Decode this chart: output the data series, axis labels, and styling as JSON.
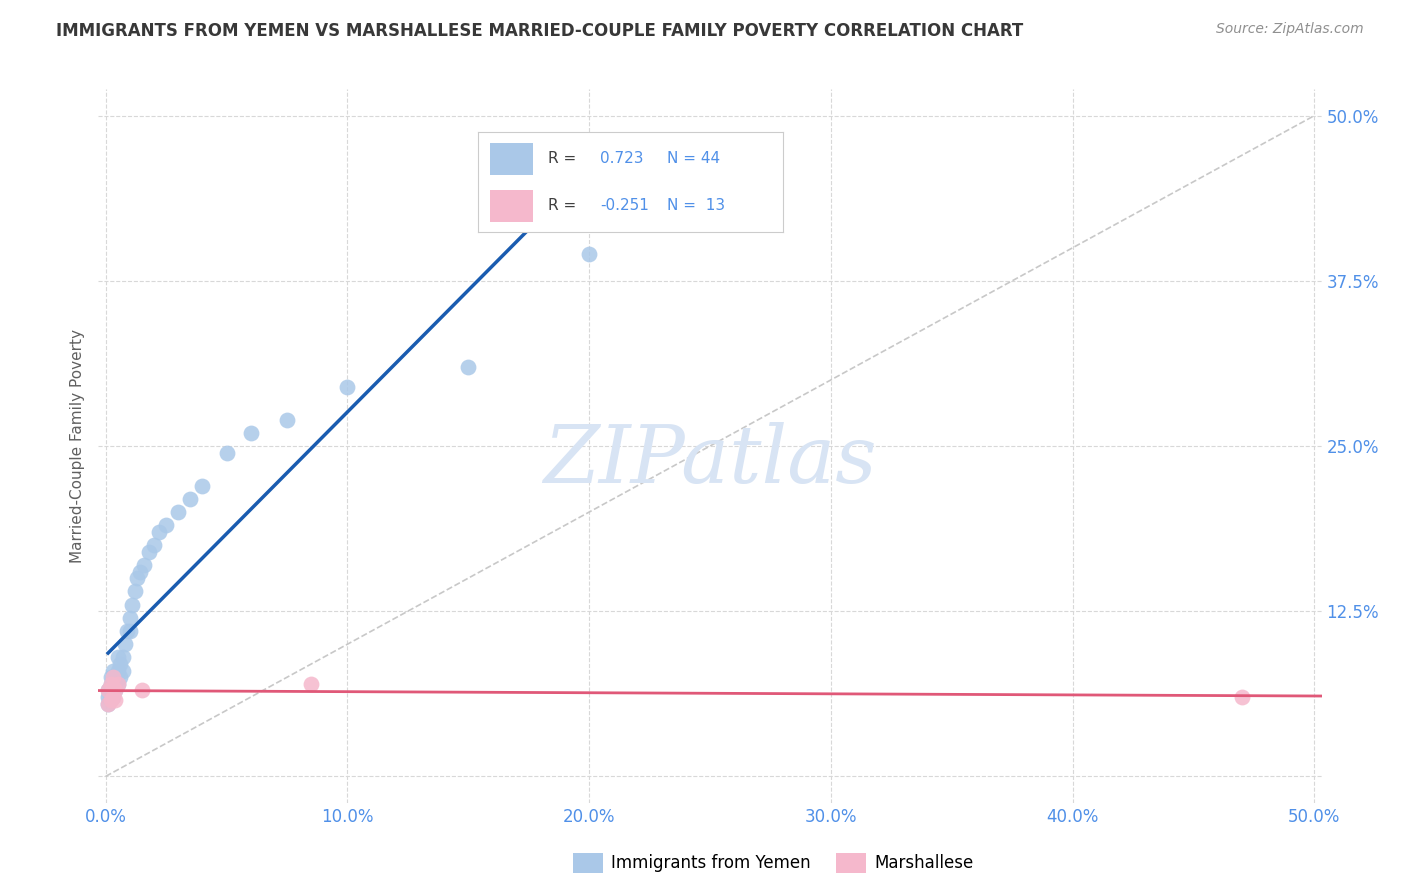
{
  "title": "IMMIGRANTS FROM YEMEN VS MARSHALLESE MARRIED-COUPLE FAMILY POVERTY CORRELATION CHART",
  "source": "Source: ZipAtlas.com",
  "ylabel": "Married-Couple Family Poverty",
  "xlim": [
    -0.003,
    0.503
  ],
  "ylim": [
    -0.02,
    0.52
  ],
  "xticks": [
    0.0,
    0.1,
    0.2,
    0.3,
    0.4,
    0.5
  ],
  "xticklabels": [
    "0.0%",
    "10.0%",
    "20.0%",
    "30.0%",
    "40.0%",
    "50.0%"
  ],
  "ytick_positions": [
    0.0,
    0.125,
    0.25,
    0.375,
    0.5
  ],
  "yticklabels_right": [
    "",
    "12.5%",
    "25.0%",
    "37.5%",
    "50.0%"
  ],
  "watermark": "ZIPatlas",
  "blue_scatter_x": [
    0.001,
    0.001,
    0.001,
    0.002,
    0.002,
    0.002,
    0.002,
    0.003,
    0.003,
    0.003,
    0.003,
    0.003,
    0.004,
    0.004,
    0.004,
    0.005,
    0.005,
    0.005,
    0.006,
    0.006,
    0.007,
    0.007,
    0.008,
    0.009,
    0.01,
    0.01,
    0.011,
    0.012,
    0.013,
    0.014,
    0.016,
    0.018,
    0.02,
    0.022,
    0.025,
    0.03,
    0.035,
    0.04,
    0.05,
    0.06,
    0.075,
    0.1,
    0.15,
    0.2
  ],
  "blue_scatter_y": [
    0.055,
    0.06,
    0.065,
    0.06,
    0.065,
    0.07,
    0.075,
    0.06,
    0.065,
    0.07,
    0.075,
    0.08,
    0.065,
    0.07,
    0.075,
    0.07,
    0.08,
    0.09,
    0.075,
    0.085,
    0.08,
    0.09,
    0.1,
    0.11,
    0.11,
    0.12,
    0.13,
    0.14,
    0.15,
    0.155,
    0.16,
    0.17,
    0.175,
    0.185,
    0.19,
    0.2,
    0.21,
    0.22,
    0.245,
    0.26,
    0.27,
    0.295,
    0.31,
    0.395
  ],
  "pink_scatter_x": [
    0.001,
    0.001,
    0.002,
    0.002,
    0.003,
    0.003,
    0.003,
    0.004,
    0.004,
    0.005,
    0.015,
    0.085,
    0.47
  ],
  "pink_scatter_y": [
    0.055,
    0.065,
    0.058,
    0.07,
    0.06,
    0.068,
    0.075,
    0.058,
    0.065,
    0.07,
    0.065,
    0.07,
    0.06
  ],
  "blue_color": "#aac8e8",
  "pink_color": "#f5b8cc",
  "blue_line_color": "#1a5cb0",
  "pink_line_color": "#e05878",
  "diag_line_color": "#c8c8c8",
  "grid_color": "#d8d8d8",
  "title_color": "#383838",
  "tick_color": "#5090e8",
  "source_color": "#909090",
  "watermark_color": "#d8e4f4",
  "ylabel_color": "#606060",
  "legend_box_color": "#cccccc"
}
